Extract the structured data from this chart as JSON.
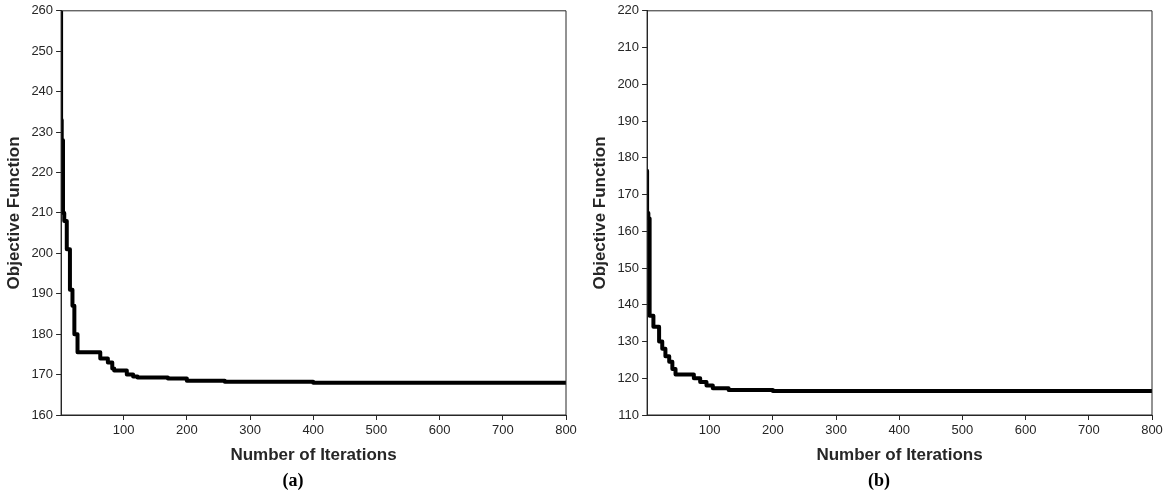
{
  "chart_data": [
    {
      "type": "step",
      "xlabel": "Number of Iterations",
      "ylabel": "Objective Function",
      "annotations": [
        "(a)"
      ],
      "xlim": [
        1,
        800
      ],
      "ylim": [
        160,
        260
      ],
      "xticks": [
        100,
        200,
        300,
        400,
        500,
        600,
        700,
        800
      ],
      "yticks": [
        160,
        170,
        180,
        190,
        200,
        210,
        220,
        230,
        240,
        250,
        260
      ],
      "grid": false,
      "legend": false,
      "marker": "none",
      "line_style": "solid",
      "series": [
        {
          "color": "#000000",
          "x": [
            1,
            2,
            4,
            6,
            10,
            15,
            19,
            22,
            27,
            32,
            63,
            75,
            82,
            85,
            105,
            115,
            122,
            170,
            200,
            260,
            400,
            800
          ],
          "values": [
            260,
            233,
            228,
            210,
            208,
            201,
            191,
            187,
            180,
            175.5,
            175.5,
            174,
            173,
            171.5,
            171,
            170,
            169.5,
            169.3,
            169,
            168.5,
            168.2,
            168
          ]
        }
      ]
    },
    {
      "type": "step",
      "xlabel": "Number of Iterations",
      "ylabel": "Objective Function",
      "annotations": [
        "(b)"
      ],
      "xlim": [
        1,
        800
      ],
      "ylim": [
        110,
        220
      ],
      "xticks": [
        100,
        200,
        300,
        400,
        500,
        600,
        700,
        800
      ],
      "yticks": [
        110,
        120,
        130,
        140,
        150,
        160,
        170,
        180,
        190,
        200,
        210,
        220
      ],
      "grid": false,
      "legend": false,
      "marker": "none",
      "line_style": "solid",
      "series": [
        {
          "color": "#000000",
          "x": [
            1,
            3,
            5,
            11,
            20,
            25,
            30,
            36,
            41,
            46,
            50,
            75,
            85,
            95,
            105,
            130,
            200,
            260,
            800
          ],
          "values": [
            176.5,
            165,
            163.5,
            137,
            134,
            130,
            128,
            126,
            124.5,
            122.5,
            121,
            121,
            120,
            119,
            118,
            117.3,
            116.8,
            116.5,
            116.5
          ]
        }
      ]
    }
  ]
}
